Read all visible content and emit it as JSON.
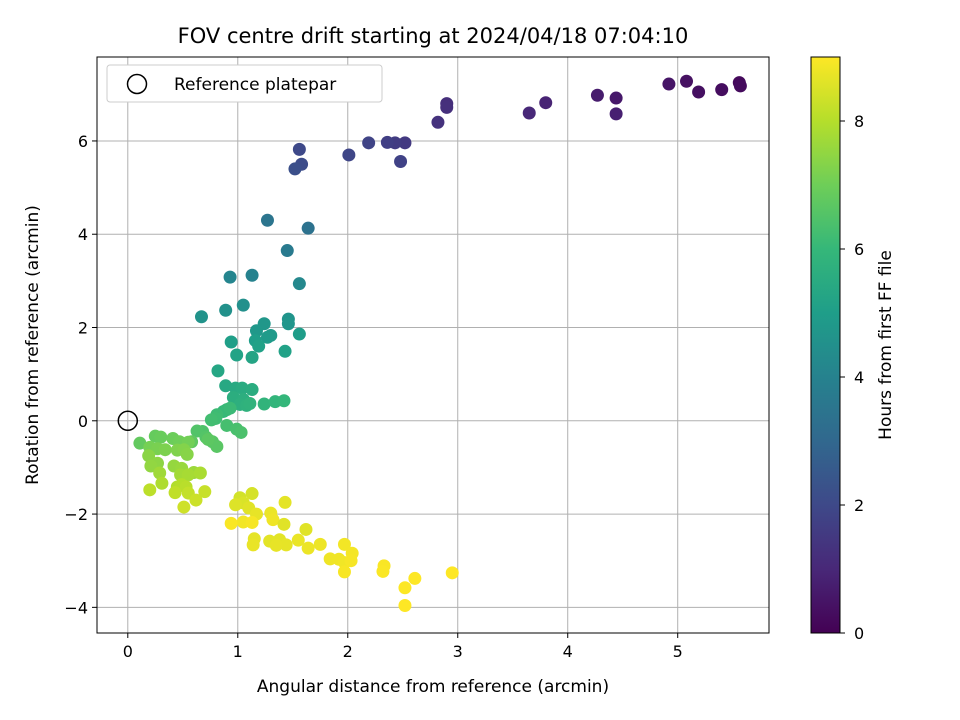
{
  "chart_data": {
    "type": "scatter",
    "title": "FOV centre drift starting at 2024/04/18 07:04:10",
    "xlabel": "Angular distance from reference (arcmin)",
    "ylabel": "Rotation from reference (arcmin)",
    "xlim": [
      -0.28,
      5.83
    ],
    "ylim": [
      -4.55,
      7.8
    ],
    "x_ticks": [
      0,
      1,
      2,
      3,
      4,
      5
    ],
    "y_ticks": [
      -4,
      -2,
      0,
      2,
      4,
      6
    ],
    "grid": true,
    "legend": {
      "placement": "upper-left",
      "entries": [
        "Reference platepar"
      ]
    },
    "reference_point": {
      "x": 0,
      "y": 0
    },
    "colorbar": {
      "label": "Hours from first FF file",
      "range": [
        0,
        9
      ],
      "ticks": [
        0,
        2,
        4,
        6,
        8
      ],
      "colormap": "viridis"
    },
    "colormap_stops": [
      "#440154",
      "#482878",
      "#3e4989",
      "#31688e",
      "#26828e",
      "#1f9e89",
      "#35b779",
      "#6ece58",
      "#b5de2b",
      "#fde725"
    ],
    "series": [
      {
        "points": [
          [
            5.56,
            7.25,
            0.2
          ],
          [
            5.57,
            7.18,
            0.25
          ],
          [
            5.4,
            7.1,
            0.3
          ],
          [
            5.19,
            7.05,
            0.35
          ],
          [
            5.08,
            7.28,
            0.4
          ],
          [
            4.92,
            7.22,
            0.5
          ],
          [
            4.44,
            6.92,
            0.6
          ],
          [
            4.27,
            6.98,
            0.7
          ],
          [
            4.44,
            6.58,
            0.8
          ],
          [
            3.8,
            6.82,
            0.9
          ],
          [
            3.65,
            6.6,
            1.0
          ],
          [
            2.9,
            6.8,
            1.2
          ],
          [
            2.9,
            6.72,
            1.25
          ],
          [
            2.82,
            6.4,
            1.3
          ],
          [
            2.52,
            5.96,
            1.5
          ],
          [
            2.43,
            5.96,
            1.6
          ],
          [
            2.36,
            5.97,
            1.7
          ],
          [
            2.48,
            5.56,
            1.8
          ],
          [
            2.19,
            5.96,
            1.85
          ],
          [
            2.01,
            5.7,
            1.9
          ],
          [
            1.56,
            5.82,
            2.0
          ],
          [
            1.58,
            5.5,
            2.1
          ],
          [
            1.52,
            5.4,
            2.2
          ],
          [
            1.64,
            4.13,
            3.4
          ],
          [
            1.27,
            4.3,
            3.5
          ],
          [
            1.45,
            3.65,
            3.7
          ],
          [
            1.13,
            3.12,
            4.0
          ],
          [
            0.93,
            3.08,
            4.1
          ],
          [
            1.56,
            2.94,
            4.2
          ],
          [
            1.05,
            2.48,
            4.5
          ],
          [
            0.89,
            2.37,
            4.55
          ],
          [
            0.67,
            2.23,
            4.6
          ],
          [
            1.46,
            2.18,
            4.65
          ],
          [
            1.46,
            2.08,
            4.7
          ],
          [
            1.24,
            2.08,
            4.75
          ],
          [
            1.17,
            1.93,
            4.8
          ],
          [
            1.3,
            1.83,
            4.85
          ],
          [
            1.27,
            1.79,
            4.9
          ],
          [
            1.56,
            1.86,
            4.95
          ],
          [
            1.16,
            1.72,
            5.0
          ],
          [
            0.94,
            1.69,
            5.05
          ],
          [
            1.19,
            1.6,
            5.1
          ],
          [
            1.43,
            1.49,
            5.15
          ],
          [
            0.99,
            1.41,
            5.2
          ],
          [
            1.13,
            1.36,
            5.25
          ],
          [
            0.82,
            1.07,
            5.3
          ],
          [
            0.89,
            0.75,
            5.4
          ],
          [
            0.98,
            0.7,
            5.45
          ],
          [
            1.04,
            0.7,
            5.5
          ],
          [
            1.13,
            0.67,
            5.55
          ],
          [
            0.96,
            0.5,
            5.6
          ],
          [
            1.05,
            0.46,
            5.65
          ],
          [
            1.02,
            0.35,
            5.7
          ],
          [
            1.08,
            0.33,
            5.75
          ],
          [
            1.11,
            0.37,
            5.8
          ],
          [
            1.24,
            0.36,
            5.85
          ],
          [
            1.34,
            0.41,
            5.9
          ],
          [
            1.42,
            0.43,
            5.95
          ],
          [
            0.87,
            0.2,
            6.0
          ],
          [
            0.9,
            0.24,
            6.05
          ],
          [
            0.93,
            0.27,
            6.1
          ],
          [
            0.81,
            0.13,
            6.15
          ],
          [
            0.8,
            0.05,
            6.2
          ],
          [
            0.76,
            0.02,
            6.25
          ],
          [
            0.9,
            -0.1,
            6.3
          ],
          [
            0.99,
            -0.18,
            6.35
          ],
          [
            1.03,
            -0.25,
            6.4
          ],
          [
            0.68,
            -0.23,
            6.45
          ],
          [
            0.63,
            -0.22,
            6.5
          ],
          [
            0.71,
            -0.35,
            6.55
          ],
          [
            0.77,
            -0.45,
            6.6
          ],
          [
            0.81,
            -0.55,
            6.65
          ],
          [
            0.73,
            -0.4,
            6.7
          ],
          [
            0.58,
            -0.45,
            6.75
          ],
          [
            0.11,
            -0.48,
            6.8
          ],
          [
            0.25,
            -0.33,
            6.85
          ],
          [
            0.3,
            -0.35,
            6.9
          ],
          [
            0.41,
            -0.38,
            6.95
          ],
          [
            0.47,
            -0.45,
            7.0
          ],
          [
            0.55,
            -0.46,
            7.05
          ],
          [
            0.2,
            -0.57,
            7.1
          ],
          [
            0.27,
            -0.6,
            7.15
          ],
          [
            0.34,
            -0.62,
            7.2
          ],
          [
            0.45,
            -0.63,
            7.25
          ],
          [
            0.51,
            -0.62,
            7.3
          ],
          [
            0.54,
            -0.72,
            7.35
          ],
          [
            0.19,
            -0.75,
            7.4
          ],
          [
            0.27,
            -0.91,
            7.45
          ],
          [
            0.21,
            -0.97,
            7.5
          ],
          [
            0.42,
            -0.97,
            7.55
          ],
          [
            0.49,
            -1.02,
            7.6
          ],
          [
            0.6,
            -1.11,
            7.65
          ],
          [
            0.29,
            -1.12,
            7.7
          ],
          [
            0.48,
            -1.16,
            7.75
          ],
          [
            0.55,
            -1.16,
            7.8
          ],
          [
            0.66,
            -1.12,
            7.85
          ],
          [
            0.31,
            -1.34,
            7.9
          ],
          [
            0.45,
            -1.42,
            7.95
          ],
          [
            0.49,
            -1.37,
            8.0
          ],
          [
            0.53,
            -1.42,
            8.05
          ],
          [
            0.2,
            -1.48,
            8.1
          ],
          [
            0.43,
            -1.54,
            8.15
          ],
          [
            0.55,
            -1.55,
            8.2
          ],
          [
            0.7,
            -1.52,
            8.25
          ],
          [
            0.62,
            -1.7,
            8.3
          ],
          [
            0.51,
            -1.85,
            8.35
          ],
          [
            1.02,
            -1.65,
            8.4
          ],
          [
            1.13,
            -1.56,
            8.45
          ],
          [
            1.05,
            -1.76,
            8.5
          ],
          [
            0.98,
            -1.8,
            8.55
          ],
          [
            1.1,
            -1.87,
            8.6
          ],
          [
            1.43,
            -1.75,
            8.65
          ],
          [
            1.17,
            -2.0,
            8.7
          ],
          [
            1.3,
            -1.98,
            8.75
          ],
          [
            1.32,
            -2.12,
            8.8
          ],
          [
            1.05,
            -2.17,
            8.85
          ],
          [
            1.13,
            -2.18,
            8.9
          ],
          [
            0.94,
            -2.2,
            8.95
          ],
          [
            1.42,
            -2.22,
            8.6
          ],
          [
            1.62,
            -2.33,
            8.6
          ],
          [
            1.38,
            -2.55,
            8.62
          ],
          [
            1.29,
            -2.58,
            8.64
          ],
          [
            1.15,
            -2.53,
            8.66
          ],
          [
            1.44,
            -2.66,
            8.68
          ],
          [
            1.35,
            -2.67,
            8.7
          ],
          [
            1.14,
            -2.66,
            8.72
          ],
          [
            1.55,
            -2.56,
            8.74
          ],
          [
            1.64,
            -2.73,
            8.76
          ],
          [
            1.75,
            -2.65,
            8.78
          ],
          [
            1.84,
            -2.96,
            8.8
          ],
          [
            1.92,
            -2.97,
            8.82
          ],
          [
            1.97,
            -3.04,
            8.84
          ],
          [
            1.97,
            -2.65,
            8.86
          ],
          [
            2.04,
            -2.84,
            8.88
          ],
          [
            2.03,
            -3.0,
            8.9
          ],
          [
            1.97,
            -3.24,
            8.92
          ],
          [
            2.33,
            -3.11,
            8.94
          ],
          [
            2.32,
            -3.23,
            8.96
          ],
          [
            2.52,
            -3.58,
            8.98
          ],
          [
            2.61,
            -3.38,
            9.0
          ],
          [
            2.52,
            -3.96,
            9.0
          ],
          [
            2.95,
            -3.26,
            9.0
          ]
        ]
      }
    ]
  }
}
